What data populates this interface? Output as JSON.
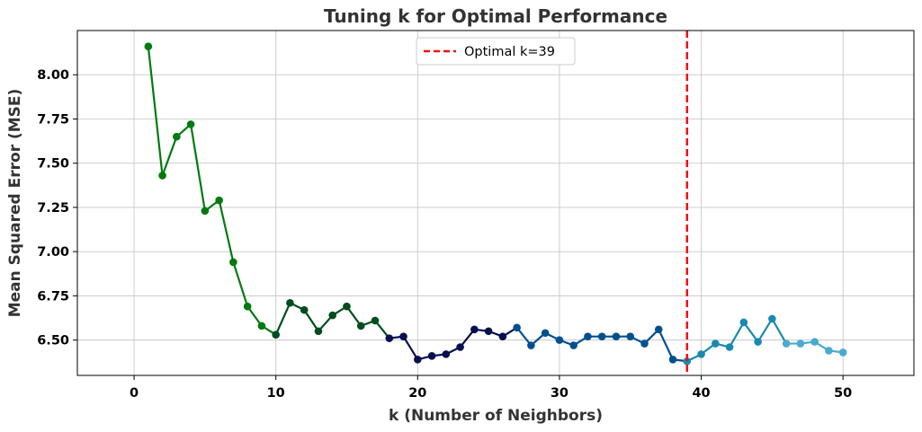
{
  "chart_data": {
    "type": "line",
    "title": "Tuning k for Optimal Performance",
    "xlabel": "k (Number of Neighbors)",
    "ylabel": "Mean Squared Error (MSE)",
    "xlim": [
      -4,
      55
    ],
    "ylim": [
      6.3,
      8.25
    ],
    "xticks": [
      0,
      10,
      20,
      30,
      40,
      50
    ],
    "yticks": [
      6.5,
      6.75,
      7.0,
      7.25,
      7.5,
      7.75,
      8.0
    ],
    "grid": true,
    "legend_position": "top-center",
    "optimal_line": {
      "x": 39,
      "label": "Optimal k=39",
      "color": "#ee1111"
    },
    "x": [
      1,
      2,
      3,
      4,
      5,
      6,
      7,
      8,
      9,
      10,
      11,
      12,
      13,
      14,
      15,
      16,
      17,
      18,
      19,
      20,
      21,
      22,
      23,
      24,
      25,
      26,
      27,
      28,
      29,
      30,
      31,
      32,
      33,
      34,
      35,
      36,
      37,
      38,
      39,
      40,
      41,
      42,
      43,
      44,
      45,
      46,
      47,
      48,
      49,
      50
    ],
    "y": [
      8.16,
      7.43,
      7.65,
      7.72,
      7.23,
      7.29,
      6.94,
      6.69,
      6.58,
      6.53,
      6.71,
      6.67,
      6.55,
      6.64,
      6.69,
      6.58,
      6.61,
      6.51,
      6.52,
      6.39,
      6.41,
      6.42,
      6.46,
      6.56,
      6.55,
      6.52,
      6.57,
      6.47,
      6.54,
      6.5,
      6.47,
      6.52,
      6.52,
      6.52,
      6.52,
      6.48,
      6.56,
      6.39,
      6.38,
      6.42,
      6.48,
      6.46,
      6.6,
      6.49,
      6.62,
      6.48,
      6.48,
      6.49,
      6.44,
      6.43
    ],
    "palette": {
      "green": "#007a10",
      "dark_green": "#004d1e",
      "navy": "#061050",
      "blue": "#005090",
      "teal": "#1a8ab0",
      "light_teal": "#4aaad0"
    }
  }
}
